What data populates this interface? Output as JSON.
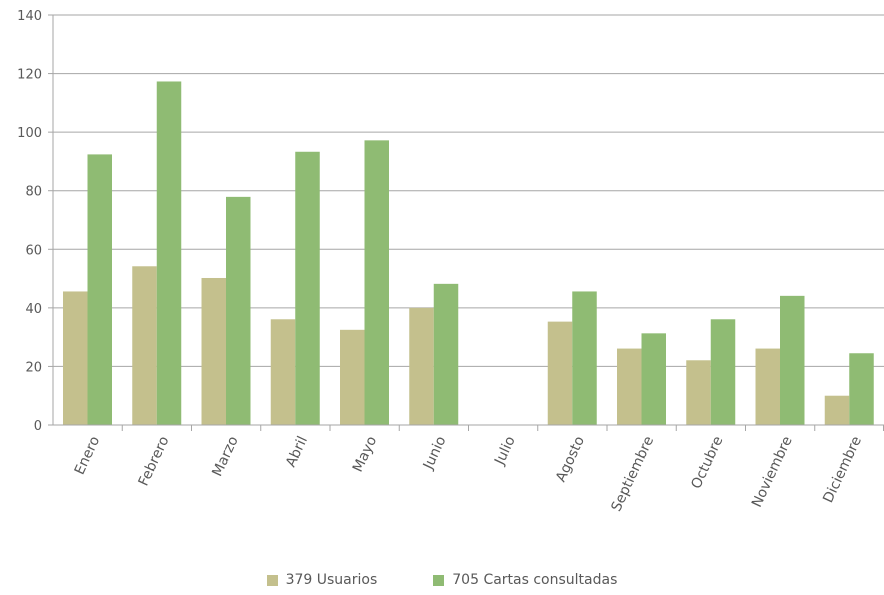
{
  "chart_data": {
    "type": "bar",
    "categories": [
      "Enero",
      "Febrero",
      "Marzo",
      "Abril",
      "Mayo",
      "Junio",
      "Julio",
      "Agosto",
      "Septiembre",
      "Octubre",
      "Noviembre",
      "Diciembre"
    ],
    "series": [
      {
        "name": "379 Usuarios",
        "color": "#c4c08d",
        "values": [
          45.6,
          54.2,
          50.2,
          36.1,
          32.5,
          40.0,
          0,
          35.3,
          26.1,
          22.1,
          26.1,
          10.0
        ]
      },
      {
        "name": "705 Cartas consultadas",
        "color": "#8fbb73",
        "values": [
          92.4,
          117.3,
          77.9,
          93.3,
          97.2,
          48.2,
          0,
          45.6,
          31.3,
          36.1,
          44.1,
          24.5
        ]
      }
    ],
    "ylim": [
      0,
      140
    ],
    "yticks": [
      0,
      20,
      40,
      60,
      80,
      100,
      120,
      140
    ],
    "grid": true,
    "legend_position": "bottom"
  }
}
